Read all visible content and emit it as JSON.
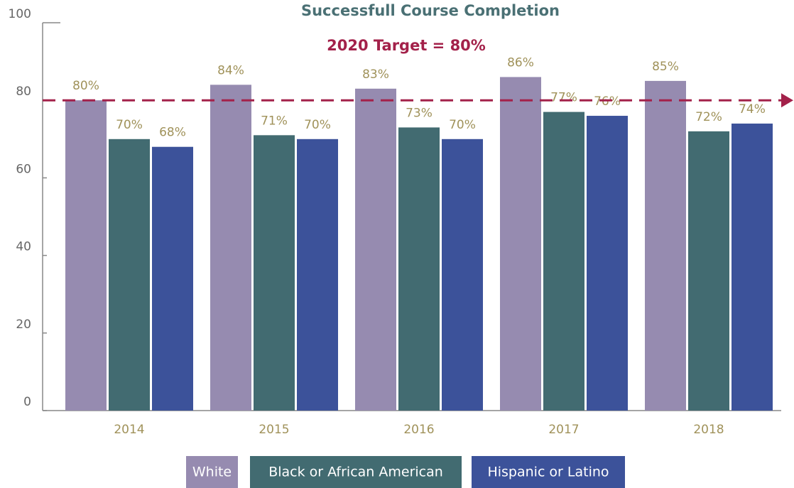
{
  "chart_data": {
    "type": "bar",
    "title": "Successfull Course Completion",
    "annotation": "2020 Target = 80%",
    "target_line": 80,
    "target_color": "#a3214a",
    "categories": [
      "2014",
      "2015",
      "2016",
      "2017",
      "2018"
    ],
    "series": [
      {
        "name": "White",
        "color": "#968bb0",
        "values": [
          80,
          84,
          83,
          86,
          85
        ],
        "value_labels": [
          "80%",
          "84%",
          "83%",
          "86%",
          "85%"
        ]
      },
      {
        "name": "Black or African American",
        "color": "#426b71",
        "values": [
          70,
          71,
          73,
          77,
          72
        ],
        "value_labels": [
          "70%",
          "71%",
          "73%",
          "77%",
          "72%"
        ]
      },
      {
        "name": "Hispanic or Latino",
        "color": "#3c529a",
        "values": [
          68,
          70,
          70,
          76,
          74
        ],
        "value_labels": [
          "68%",
          "70%",
          "70%",
          "76%",
          "74%"
        ]
      }
    ],
    "ylim": [
      0,
      100
    ],
    "yticks": [
      0,
      20,
      40,
      60,
      80,
      100
    ]
  }
}
